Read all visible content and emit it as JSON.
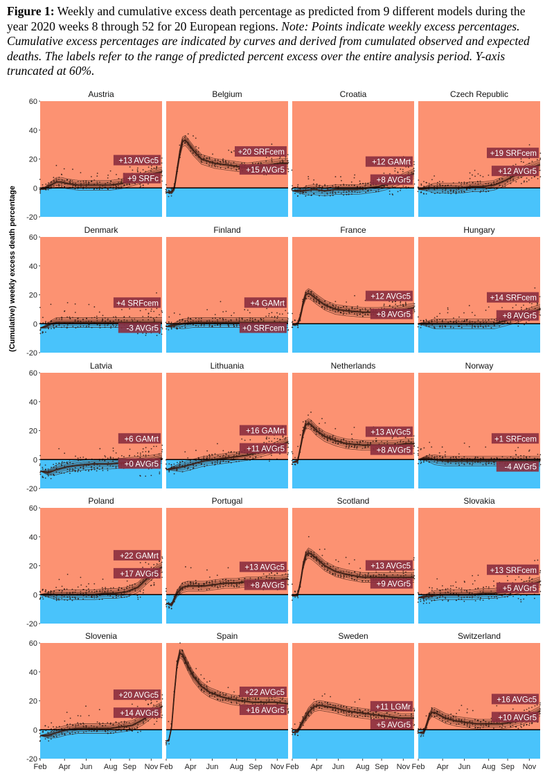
{
  "caption": {
    "figure_label": "Figure 1:",
    "main": "Weekly and cumulative excess death percentage as predicted from 9 different models during the year 2020 weeks 8 through 52 for 20 European regions.",
    "note": "Note: Points indicate weekly excess percentages. Cumulative excess percentages are indicated by curves and derived from cumulated observed and expected deaths. The labels refer to the range of predicted percent excess over the entire analysis period. Y-axis truncated at 60%."
  },
  "colors": {
    "excess_bg": "#fc9272",
    "deficit_bg": "#49c3fb",
    "label_bg": "#8b2f3f",
    "curve": "#3a1d14",
    "point": "#2a1a14",
    "zero_line": "#000000"
  },
  "chart_data": {
    "type": "line",
    "ylabel": "(Cumulative) weekly excess death percentage",
    "ylim": [
      -20,
      60
    ],
    "yticks": [
      "-20",
      "0",
      "20",
      "40",
      "60"
    ],
    "xticks": [
      "Feb",
      "Apr",
      "Jun",
      "Aug",
      "Sep",
      "Nov"
    ],
    "panels": [
      {
        "region": "Austria",
        "label_max": "+13 AVGc5",
        "label_min": "+9 SRFc",
        "curve": [
          [
            0,
            -1
          ],
          [
            2,
            0
          ],
          [
            4,
            2
          ],
          [
            6,
            4
          ],
          [
            8,
            4
          ],
          [
            10,
            3
          ],
          [
            14,
            2
          ],
          [
            18,
            2
          ],
          [
            22,
            2
          ],
          [
            26,
            2
          ],
          [
            30,
            3
          ],
          [
            34,
            5
          ],
          [
            38,
            7
          ],
          [
            42,
            10
          ],
          [
            45,
            11
          ]
        ],
        "spread": 3
      },
      {
        "region": "Belgium",
        "label_max": "+20 SRFcem",
        "label_min": "+15 AVGr5",
        "curve": [
          [
            0,
            -3
          ],
          [
            2,
            -3
          ],
          [
            3,
            0
          ],
          [
            4,
            12
          ],
          [
            5,
            24
          ],
          [
            6,
            32
          ],
          [
            7,
            33
          ],
          [
            8,
            31
          ],
          [
            10,
            26
          ],
          [
            13,
            20
          ],
          [
            18,
            17
          ],
          [
            22,
            16
          ],
          [
            26,
            15
          ],
          [
            30,
            14
          ],
          [
            34,
            15
          ],
          [
            38,
            16
          ],
          [
            42,
            17
          ],
          [
            45,
            17
          ]
        ],
        "spread": 3
      },
      {
        "region": "Croatia",
        "label_max": "+12 GAMrt",
        "label_min": "+8 AVGr5",
        "curve": [
          [
            0,
            -2
          ],
          [
            4,
            -2
          ],
          [
            8,
            -1
          ],
          [
            12,
            -2
          ],
          [
            16,
            -1
          ],
          [
            20,
            -1
          ],
          [
            24,
            -1
          ],
          [
            28,
            0
          ],
          [
            32,
            1
          ],
          [
            36,
            3
          ],
          [
            40,
            6
          ],
          [
            45,
            10
          ]
        ],
        "spread": 4
      },
      {
        "region": "Czech Republic",
        "label_max": "+19 SRFcem",
        "label_min": "+12 AVGr5",
        "curve": [
          [
            0,
            -1
          ],
          [
            4,
            0
          ],
          [
            8,
            0
          ],
          [
            12,
            0
          ],
          [
            16,
            0
          ],
          [
            20,
            1
          ],
          [
            24,
            1
          ],
          [
            28,
            2
          ],
          [
            32,
            5
          ],
          [
            36,
            9
          ],
          [
            40,
            13
          ],
          [
            45,
            16
          ]
        ],
        "spread": 4
      },
      {
        "region": "Denmark",
        "label_max": "+4 SRFcem",
        "label_min": "-3 AVGr5",
        "curve": [
          [
            0,
            -3
          ],
          [
            2,
            -2
          ],
          [
            4,
            0
          ],
          [
            6,
            1
          ],
          [
            8,
            1
          ],
          [
            12,
            1
          ],
          [
            18,
            1
          ],
          [
            24,
            1
          ],
          [
            30,
            1
          ],
          [
            36,
            1
          ],
          [
            40,
            1
          ],
          [
            45,
            1
          ]
        ],
        "spread": 4
      },
      {
        "region": "Finland",
        "label_max": "+4 GAMrt",
        "label_min": "+0 SRFcem",
        "curve": [
          [
            0,
            -2
          ],
          [
            3,
            -1
          ],
          [
            6,
            0
          ],
          [
            10,
            1
          ],
          [
            14,
            1
          ],
          [
            20,
            1
          ],
          [
            26,
            1
          ],
          [
            32,
            1
          ],
          [
            38,
            1
          ],
          [
            45,
            1
          ]
        ],
        "spread": 3
      },
      {
        "region": "France",
        "label_max": "+12 AVGc5",
        "label_min": "+8 AVGr5",
        "curve": [
          [
            0,
            -1
          ],
          [
            2,
            0
          ],
          [
            3,
            5
          ],
          [
            4,
            14
          ],
          [
            5,
            20
          ],
          [
            6,
            21
          ],
          [
            7,
            20
          ],
          [
            9,
            17
          ],
          [
            12,
            13
          ],
          [
            16,
            10
          ],
          [
            20,
            9
          ],
          [
            26,
            8
          ],
          [
            32,
            8
          ],
          [
            38,
            9
          ],
          [
            42,
            10
          ],
          [
            45,
            11
          ]
        ],
        "spread": 3
      },
      {
        "region": "Hungary",
        "label_max": "+14 SRFcem",
        "label_min": "+8 AVGr5",
        "curve": [
          [
            0,
            0
          ],
          [
            4,
            0
          ],
          [
            8,
            0
          ],
          [
            12,
            0
          ],
          [
            16,
            0
          ],
          [
            20,
            0
          ],
          [
            24,
            0
          ],
          [
            28,
            0
          ],
          [
            32,
            2
          ],
          [
            36,
            4
          ],
          [
            40,
            7
          ],
          [
            45,
            10
          ]
        ],
        "spread": 3
      },
      {
        "region": "Latvia",
        "label_max": "+6 GAMrt",
        "label_min": "+0 AVGr5",
        "curve": [
          [
            0,
            -8
          ],
          [
            3,
            -9
          ],
          [
            6,
            -7
          ],
          [
            10,
            -5
          ],
          [
            14,
            -4
          ],
          [
            20,
            -3
          ],
          [
            26,
            -3
          ],
          [
            32,
            -2
          ],
          [
            38,
            -1
          ],
          [
            42,
            0
          ],
          [
            45,
            1
          ]
        ],
        "spread": 5
      },
      {
        "region": "Lithuania",
        "label_max": "+16 GAMrt",
        "label_min": "+11 AVGr5",
        "curve": [
          [
            0,
            -7
          ],
          [
            3,
            -6
          ],
          [
            6,
            -5
          ],
          [
            10,
            -3
          ],
          [
            14,
            -1
          ],
          [
            18,
            0
          ],
          [
            22,
            1
          ],
          [
            26,
            2
          ],
          [
            30,
            3
          ],
          [
            34,
            5
          ],
          [
            38,
            7
          ],
          [
            42,
            10
          ],
          [
            45,
            12
          ]
        ],
        "spread": 4
      },
      {
        "region": "Netherlands",
        "label_max": "+13 AVGc5",
        "label_min": "+8 AVGr5",
        "curve": [
          [
            0,
            -2
          ],
          [
            2,
            -1
          ],
          [
            3,
            8
          ],
          [
            4,
            18
          ],
          [
            5,
            24
          ],
          [
            6,
            25
          ],
          [
            7,
            24
          ],
          [
            9,
            20
          ],
          [
            12,
            16
          ],
          [
            16,
            13
          ],
          [
            20,
            11
          ],
          [
            26,
            10
          ],
          [
            32,
            10
          ],
          [
            38,
            10
          ],
          [
            42,
            11
          ],
          [
            45,
            11
          ]
        ],
        "spread": 3
      },
      {
        "region": "Norway",
        "label_max": "+1 SRFcem",
        "label_min": "-4 AVGr5",
        "curve": [
          [
            0,
            0
          ],
          [
            3,
            1
          ],
          [
            6,
            0
          ],
          [
            10,
            -1
          ],
          [
            14,
            -1
          ],
          [
            20,
            -1
          ],
          [
            26,
            -1
          ],
          [
            32,
            -1
          ],
          [
            38,
            -1
          ],
          [
            45,
            -1
          ]
        ],
        "spread": 3
      },
      {
        "region": "Poland",
        "label_max": "+22 GAMrt",
        "label_min": "+17 AVGr5",
        "curve": [
          [
            0,
            0
          ],
          [
            4,
            0
          ],
          [
            8,
            0
          ],
          [
            12,
            0
          ],
          [
            16,
            0
          ],
          [
            20,
            0
          ],
          [
            24,
            1
          ],
          [
            28,
            1
          ],
          [
            32,
            2
          ],
          [
            36,
            5
          ],
          [
            40,
            12
          ],
          [
            43,
            17
          ],
          [
            45,
            19
          ]
        ],
        "spread": 4
      },
      {
        "region": "Portugal",
        "label_max": "+13 AVGc5",
        "label_min": "+8 AVGr5",
        "curve": [
          [
            0,
            -6
          ],
          [
            2,
            -7
          ],
          [
            4,
            1
          ],
          [
            6,
            5
          ],
          [
            8,
            6
          ],
          [
            10,
            6
          ],
          [
            14,
            6
          ],
          [
            18,
            7
          ],
          [
            22,
            8
          ],
          [
            26,
            8
          ],
          [
            30,
            9
          ],
          [
            34,
            9
          ],
          [
            38,
            10
          ],
          [
            42,
            10
          ],
          [
            45,
            11
          ]
        ],
        "spread": 3
      },
      {
        "region": "Scotland",
        "label_max": "+13 AVGc5",
        "label_min": "+9 AVGr5",
        "curve": [
          [
            0,
            -1
          ],
          [
            2,
            0
          ],
          [
            3,
            8
          ],
          [
            4,
            20
          ],
          [
            5,
            27
          ],
          [
            6,
            29
          ],
          [
            7,
            28
          ],
          [
            9,
            25
          ],
          [
            12,
            20
          ],
          [
            16,
            16
          ],
          [
            20,
            14
          ],
          [
            26,
            12
          ],
          [
            32,
            12
          ],
          [
            38,
            12
          ],
          [
            42,
            12
          ],
          [
            45,
            12
          ]
        ],
        "spread": 3
      },
      {
        "region": "Slovakia",
        "label_max": "+13 SRFcem",
        "label_min": "+5 AVGr5",
        "curve": [
          [
            0,
            -2
          ],
          [
            4,
            -1
          ],
          [
            8,
            0
          ],
          [
            12,
            0
          ],
          [
            16,
            0
          ],
          [
            20,
            0
          ],
          [
            24,
            1
          ],
          [
            28,
            1
          ],
          [
            32,
            2
          ],
          [
            36,
            4
          ],
          [
            40,
            6
          ],
          [
            45,
            9
          ]
        ],
        "spread": 5
      },
      {
        "region": "Slovenia",
        "label_max": "+20 AVGc5",
        "label_min": "+14 AVGr5",
        "curve": [
          [
            0,
            -4
          ],
          [
            3,
            -4
          ],
          [
            6,
            -2
          ],
          [
            10,
            0
          ],
          [
            14,
            1
          ],
          [
            18,
            1
          ],
          [
            22,
            1
          ],
          [
            26,
            1
          ],
          [
            30,
            2
          ],
          [
            34,
            3
          ],
          [
            38,
            7
          ],
          [
            42,
            13
          ],
          [
            45,
            16
          ]
        ],
        "spread": 4
      },
      {
        "region": "Spain",
        "label_max": "+22 AVGc5",
        "label_min": "+16 AVGr5",
        "curve": [
          [
            0,
            -8
          ],
          [
            1,
            -7
          ],
          [
            2,
            2
          ],
          [
            3,
            25
          ],
          [
            4,
            45
          ],
          [
            5,
            53
          ],
          [
            6,
            52
          ],
          [
            8,
            44
          ],
          [
            10,
            37
          ],
          [
            13,
            30
          ],
          [
            16,
            26
          ],
          [
            20,
            23
          ],
          [
            24,
            21
          ],
          [
            28,
            20
          ],
          [
            32,
            19
          ],
          [
            36,
            19
          ],
          [
            40,
            19
          ],
          [
            45,
            18
          ]
        ],
        "spread": 3
      },
      {
        "region": "Sweden",
        "label_max": "+11 LGMr",
        "label_min": "+5 AVGr5",
        "curve": [
          [
            0,
            -2
          ],
          [
            2,
            -1
          ],
          [
            4,
            6
          ],
          [
            6,
            12
          ],
          [
            8,
            16
          ],
          [
            10,
            17
          ],
          [
            13,
            16
          ],
          [
            16,
            15
          ],
          [
            20,
            13
          ],
          [
            24,
            12
          ],
          [
            28,
            11
          ],
          [
            32,
            10
          ],
          [
            36,
            9
          ],
          [
            40,
            8
          ],
          [
            45,
            8
          ]
        ],
        "spread": 3
      },
      {
        "region": "Switzerland",
        "label_max": "+16 AVGc5",
        "label_min": "+10 AVGr5",
        "curve": [
          [
            0,
            -2
          ],
          [
            2,
            -2
          ],
          [
            3,
            3
          ],
          [
            4,
            9
          ],
          [
            5,
            12
          ],
          [
            6,
            12
          ],
          [
            8,
            10
          ],
          [
            10,
            8
          ],
          [
            14,
            6
          ],
          [
            18,
            5
          ],
          [
            22,
            4
          ],
          [
            26,
            4
          ],
          [
            30,
            4
          ],
          [
            34,
            5
          ],
          [
            38,
            7
          ],
          [
            42,
            10
          ],
          [
            45,
            13
          ]
        ],
        "spread": 3
      }
    ]
  }
}
